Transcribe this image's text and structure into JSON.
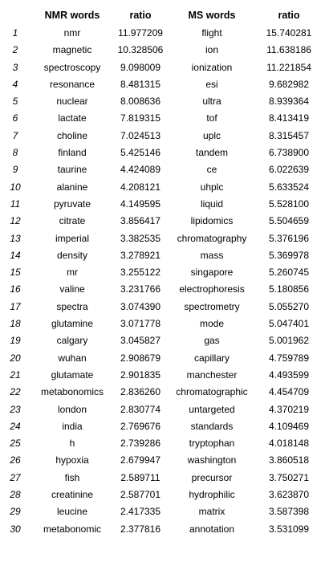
{
  "table": {
    "headers": [
      "",
      "NMR words",
      "ratio",
      "MS words",
      "ratio"
    ],
    "rows": [
      [
        "1",
        "nmr",
        "11.977209",
        "flight",
        "15.740281"
      ],
      [
        "2",
        "magnetic",
        "10.328506",
        "ion",
        "11.638186"
      ],
      [
        "3",
        "spectroscopy",
        "9.098009",
        "ionization",
        "11.221854"
      ],
      [
        "4",
        "resonance",
        "8.481315",
        "esi",
        "9.682982"
      ],
      [
        "5",
        "nuclear",
        "8.008636",
        "ultra",
        "8.939364"
      ],
      [
        "6",
        "lactate",
        "7.819315",
        "tof",
        "8.413419"
      ],
      [
        "7",
        "choline",
        "7.024513",
        "uplc",
        "8.315457"
      ],
      [
        "8",
        "finland",
        "5.425146",
        "tandem",
        "6.738900"
      ],
      [
        "9",
        "taurine",
        "4.424089",
        "ce",
        "6.022639"
      ],
      [
        "10",
        "alanine",
        "4.208121",
        "uhplc",
        "5.633524"
      ],
      [
        "11",
        "pyruvate",
        "4.149595",
        "liquid",
        "5.528100"
      ],
      [
        "12",
        "citrate",
        "3.856417",
        "lipidomics",
        "5.504659"
      ],
      [
        "13",
        "imperial",
        "3.382535",
        "chromatography",
        "5.376196"
      ],
      [
        "14",
        "density",
        "3.278921",
        "mass",
        "5.369978"
      ],
      [
        "15",
        "mr",
        "3.255122",
        "singapore",
        "5.260745"
      ],
      [
        "16",
        "valine",
        "3.231766",
        "electrophoresis",
        "5.180856"
      ],
      [
        "17",
        "spectra",
        "3.074390",
        "spectrometry",
        "5.055270"
      ],
      [
        "18",
        "glutamine",
        "3.071778",
        "mode",
        "5.047401"
      ],
      [
        "19",
        "calgary",
        "3.045827",
        "gas",
        "5.001962"
      ],
      [
        "20",
        "wuhan",
        "2.908679",
        "capillary",
        "4.759789"
      ],
      [
        "21",
        "glutamate",
        "2.901835",
        "manchester",
        "4.493599"
      ],
      [
        "22",
        "metabonomics",
        "2.836260",
        "chromatographic",
        "4.454709"
      ],
      [
        "23",
        "london",
        "2.830774",
        "untargeted",
        "4.370219"
      ],
      [
        "24",
        "india",
        "2.769676",
        "standards",
        "4.109469"
      ],
      [
        "25",
        "h",
        "2.739286",
        "tryptophan",
        "4.018148"
      ],
      [
        "26",
        "hypoxia",
        "2.679947",
        "washington",
        "3.860518"
      ],
      [
        "27",
        "fish",
        "2.589711",
        "precursor",
        "3.750271"
      ],
      [
        "28",
        "creatinine",
        "2.587701",
        "hydrophilic",
        "3.623870"
      ],
      [
        "29",
        "leucine",
        "2.417335",
        "matrix",
        "3.587398"
      ],
      [
        "30",
        "metabonomic",
        "2.377816",
        "annotation",
        "3.531099"
      ]
    ]
  }
}
